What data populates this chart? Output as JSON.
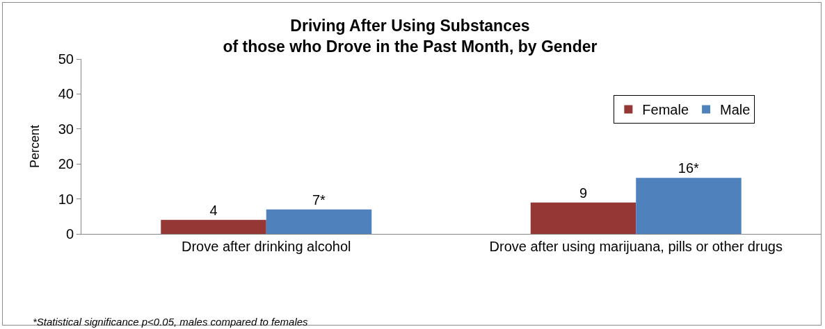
{
  "chart_data": {
    "type": "bar",
    "title": "Driving After Using Substances\nof those who Drove in the Past Month, by Gender",
    "ylabel": "Percent",
    "categories": [
      "Drove after drinking alcohol",
      "Drove after using marijuana, pills or other drugs"
    ],
    "series": [
      {
        "name": "Female",
        "color": "#953735",
        "values": [
          4,
          9
        ],
        "value_labels": [
          "4",
          "9"
        ]
      },
      {
        "name": "Male",
        "color": "#4f81bd",
        "values": [
          7,
          16
        ],
        "value_labels": [
          "7*",
          "16*"
        ]
      }
    ],
    "ylim": [
      0,
      50
    ],
    "yticks": [
      0,
      10,
      20,
      30,
      40,
      50
    ],
    "grid": false,
    "legend": "top right",
    "annotations": [
      "*Statistical significance p<0.05, males compared to females"
    ]
  }
}
